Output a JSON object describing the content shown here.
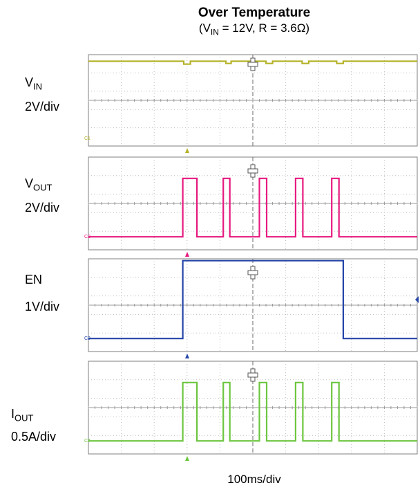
{
  "chart_data": {
    "type": "line",
    "title": "Over Temperature",
    "subtitle": {
      "prefix": "(V",
      "sub": "IN",
      "suffix": " = 12V, R = 3.6Ω)"
    },
    "xscale": "100ms/div",
    "x_divisions": 10,
    "time_unit": "div",
    "channels": [
      {
        "id": "C1",
        "name": "V",
        "name_sub": "IN",
        "scale": "2V/div",
        "color": "#b5b229",
        "level_high": 0.35,
        "level_low": 5.2,
        "points": [
          [
            0,
            0.36
          ],
          [
            2.9,
            0.36
          ],
          [
            2.9,
            0.52
          ],
          [
            3.1,
            0.52
          ],
          [
            3.1,
            0.36
          ],
          [
            4.18,
            0.36
          ],
          [
            4.18,
            0.48
          ],
          [
            4.34,
            0.48
          ],
          [
            4.34,
            0.36
          ],
          [
            5.4,
            0.36
          ],
          [
            5.4,
            0.48
          ],
          [
            5.6,
            0.48
          ],
          [
            5.6,
            0.36
          ],
          [
            6.5,
            0.36
          ],
          [
            6.5,
            0.48
          ],
          [
            6.7,
            0.48
          ],
          [
            6.7,
            0.36
          ],
          [
            7.55,
            0.36
          ],
          [
            7.55,
            0.48
          ],
          [
            7.75,
            0.48
          ],
          [
            7.75,
            0.36
          ],
          [
            10,
            0.36
          ]
        ]
      },
      {
        "id": "C2",
        "name": "V",
        "name_sub": "OUT",
        "scale": "2V/div",
        "color": "#e6197e",
        "points": [
          [
            0,
            4.3
          ],
          [
            2.87,
            4.3
          ],
          [
            2.87,
            1.15
          ],
          [
            3.3,
            1.15
          ],
          [
            3.3,
            4.3
          ],
          [
            4.1,
            4.3
          ],
          [
            4.1,
            1.15
          ],
          [
            4.3,
            1.15
          ],
          [
            4.3,
            4.3
          ],
          [
            5.2,
            4.3
          ],
          [
            5.2,
            1.15
          ],
          [
            5.42,
            1.15
          ],
          [
            5.42,
            4.3
          ],
          [
            6.3,
            4.3
          ],
          [
            6.3,
            1.15
          ],
          [
            6.52,
            1.15
          ],
          [
            6.52,
            4.3
          ],
          [
            7.4,
            4.3
          ],
          [
            7.4,
            1.15
          ],
          [
            7.62,
            1.15
          ],
          [
            7.62,
            4.3
          ],
          [
            10,
            4.3
          ]
        ]
      },
      {
        "id": "C3",
        "name": "EN",
        "name_sub": "",
        "scale": "1V/div",
        "color": "#2545a8",
        "points": [
          [
            0,
            4.3
          ],
          [
            2.87,
            4.3
          ],
          [
            2.87,
            0.1
          ],
          [
            7.75,
            0.1
          ],
          [
            7.75,
            4.3
          ],
          [
            10,
            4.3
          ]
        ]
      },
      {
        "id": "C4",
        "name": "I",
        "name_sub": "OUT",
        "scale": "0.5A/div",
        "color": "#6cc63f",
        "points": [
          [
            0,
            4.3
          ],
          [
            2.87,
            4.3
          ],
          [
            2.87,
            1.15
          ],
          [
            3.3,
            1.15
          ],
          [
            3.3,
            4.3
          ],
          [
            4.1,
            4.3
          ],
          [
            4.1,
            1.15
          ],
          [
            4.3,
            1.15
          ],
          [
            4.3,
            4.3
          ],
          [
            5.2,
            4.3
          ],
          [
            5.2,
            1.15
          ],
          [
            5.42,
            1.15
          ],
          [
            5.42,
            4.3
          ],
          [
            6.3,
            4.3
          ],
          [
            6.3,
            1.15
          ],
          [
            6.52,
            1.15
          ],
          [
            6.52,
            4.3
          ],
          [
            7.4,
            4.3
          ],
          [
            7.4,
            1.15
          ],
          [
            7.62,
            1.15
          ],
          [
            7.62,
            4.3
          ],
          [
            10,
            4.3
          ]
        ]
      }
    ],
    "grid": true
  }
}
